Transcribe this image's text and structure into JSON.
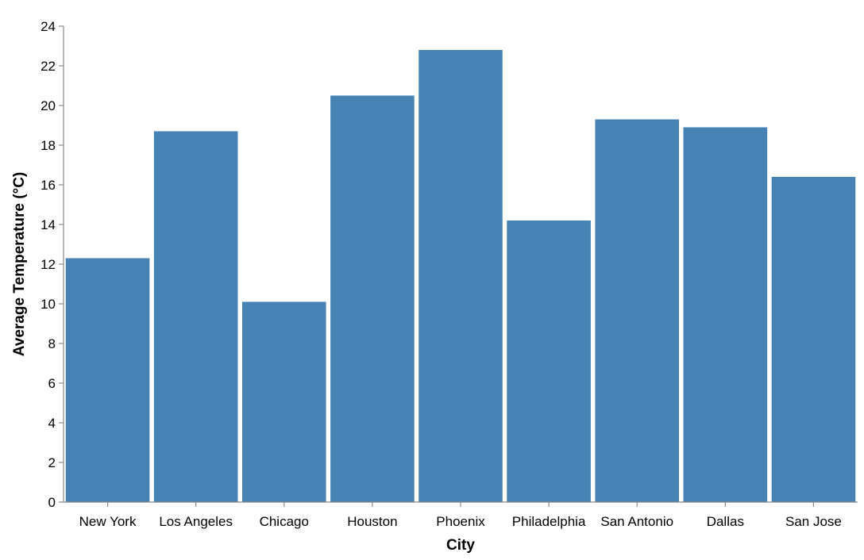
{
  "chart_data": {
    "type": "bar",
    "title": "",
    "xlabel": "City",
    "ylabel": "Average Temperature (°C)",
    "categories": [
      "New York",
      "Los Angeles",
      "Chicago",
      "Houston",
      "Phoenix",
      "Philadelphia",
      "San Antonio",
      "Dallas",
      "San Jose"
    ],
    "values": [
      12.3,
      18.7,
      10.1,
      20.5,
      22.8,
      14.2,
      19.3,
      18.9,
      16.4
    ],
    "ylim": [
      0,
      24
    ],
    "yticks": [
      0,
      2,
      4,
      6,
      8,
      10,
      12,
      14,
      16,
      18,
      20,
      22,
      24
    ],
    "grid": false,
    "bar_color": "#4682b4"
  }
}
